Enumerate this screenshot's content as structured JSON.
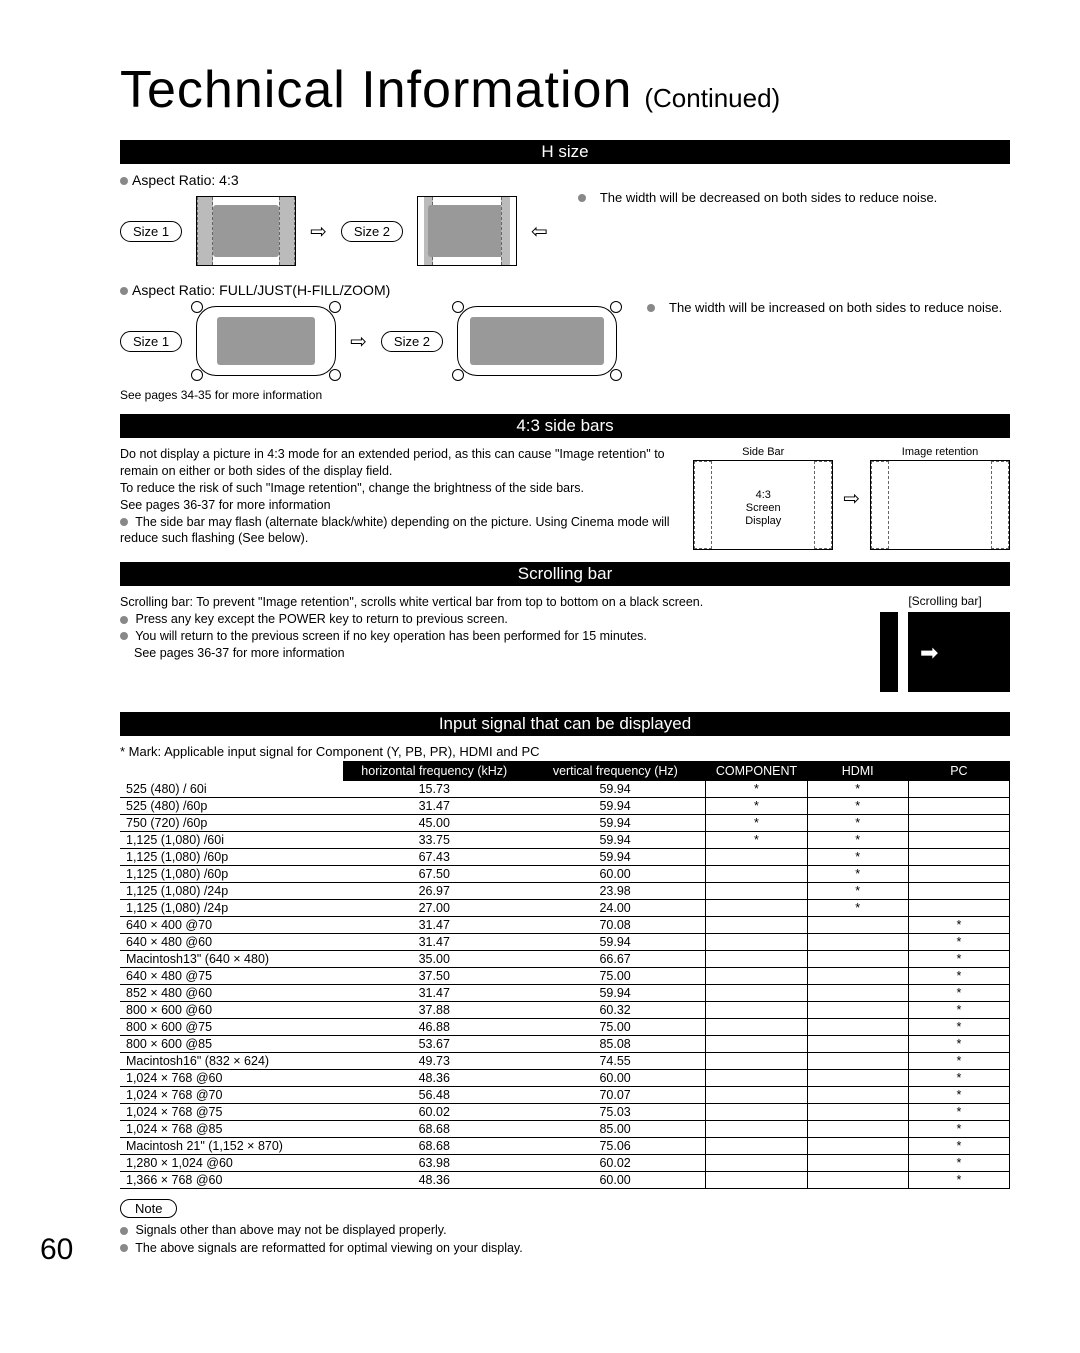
{
  "page_number": "60",
  "title": {
    "main": "Technical Information",
    "continued": "(Continued)"
  },
  "sections": {
    "hsize": {
      "header": "H size",
      "aspect_43": "Aspect Ratio: 4:3",
      "aspect_full": "Aspect Ratio: FULL/JUST(H-FILL/ZOOM)",
      "size1": "Size 1",
      "size2": "Size 2",
      "desc_43": "The width will be decreased on both sides to reduce noise.",
      "desc_full": "The width will be increased on both sides to reduce noise.",
      "see_pages": "See pages 34-35 for more information"
    },
    "sidebars": {
      "header": "4:3 side bars",
      "para1": "Do not display a picture in 4:3 mode for an extended period, as this can cause \"Image retention\" to remain on either or both sides of the display field.",
      "para2": "To reduce the risk of such \"Image retention\", change the brightness of the side bars.",
      "see_pages": "See pages 36-37 for more information",
      "bullet": "The side bar may flash (alternate black/white) depending on the picture. Using Cinema mode will reduce such flashing (See below).",
      "label_sidebar": "Side Bar",
      "label_retention": "Image retention",
      "center_text": "4:3\nScreen\nDisplay"
    },
    "scrolling": {
      "header": "Scrolling bar",
      "intro": "Scrolling bar: To prevent \"Image retention\", scrolls white vertical bar from top to bottom on a black screen.",
      "b1": "Press any key except the POWER key to return to previous screen.",
      "b2": "You will return to the previous screen if no key operation has been performed for 15 minutes.",
      "see_pages": "See pages 36-37 for more information",
      "box_label": "[Scrolling bar]"
    },
    "signals": {
      "header": "Input signal that can be displayed",
      "mark_note": "* Mark: Applicable input signal for Component (Y, PB, PR), HDMI and  PC",
      "columns": [
        "",
        "horizontal frequency (kHz)",
        "vertical frequency (Hz)",
        "COMPONENT",
        "HDMI",
        "PC"
      ],
      "rows": [
        {
          "n": "525 (480) / 60i",
          "h": "15.73",
          "v": "59.94",
          "c": "*",
          "hd": "*",
          "pc": ""
        },
        {
          "n": "525 (480) /60p",
          "h": "31.47",
          "v": "59.94",
          "c": "*",
          "hd": "*",
          "pc": ""
        },
        {
          "n": "750 (720) /60p",
          "h": "45.00",
          "v": "59.94",
          "c": "*",
          "hd": "*",
          "pc": ""
        },
        {
          "n": "1,125 (1,080) /60i",
          "h": "33.75",
          "v": "59.94",
          "c": "*",
          "hd": "*",
          "pc": ""
        },
        {
          "n": "1,125 (1,080) /60p",
          "h": "67.43",
          "v": "59.94",
          "c": "",
          "hd": "*",
          "pc": ""
        },
        {
          "n": "1,125 (1,080) /60p",
          "h": "67.50",
          "v": "60.00",
          "c": "",
          "hd": "*",
          "pc": ""
        },
        {
          "n": "1,125 (1,080) /24p",
          "h": "26.97",
          "v": "23.98",
          "c": "",
          "hd": "*",
          "pc": ""
        },
        {
          "n": "1,125 (1,080) /24p",
          "h": "27.00",
          "v": "24.00",
          "c": "",
          "hd": "*",
          "pc": ""
        },
        {
          "n": "640 × 400 @70",
          "h": "31.47",
          "v": "70.08",
          "c": "",
          "hd": "",
          "pc": "*"
        },
        {
          "n": "640 × 480 @60",
          "h": "31.47",
          "v": "59.94",
          "c": "",
          "hd": "",
          "pc": "*"
        },
        {
          "n": "Macintosh13\" (640 × 480)",
          "h": "35.00",
          "v": "66.67",
          "c": "",
          "hd": "",
          "pc": "*"
        },
        {
          "n": "640 × 480 @75",
          "h": "37.50",
          "v": "75.00",
          "c": "",
          "hd": "",
          "pc": "*"
        },
        {
          "n": "852 × 480 @60",
          "h": "31.47",
          "v": "59.94",
          "c": "",
          "hd": "",
          "pc": "*"
        },
        {
          "n": "800 × 600 @60",
          "h": "37.88",
          "v": "60.32",
          "c": "",
          "hd": "",
          "pc": "*"
        },
        {
          "n": "800 × 600 @75",
          "h": "46.88",
          "v": "75.00",
          "c": "",
          "hd": "",
          "pc": "*"
        },
        {
          "n": "800 × 600 @85",
          "h": "53.67",
          "v": "85.08",
          "c": "",
          "hd": "",
          "pc": "*"
        },
        {
          "n": "Macintosh16\" (832 × 624)",
          "h": "49.73",
          "v": "74.55",
          "c": "",
          "hd": "",
          "pc": "*"
        },
        {
          "n": "1,024 × 768 @60",
          "h": "48.36",
          "v": "60.00",
          "c": "",
          "hd": "",
          "pc": "*"
        },
        {
          "n": "1,024 × 768 @70",
          "h": "56.48",
          "v": "70.07",
          "c": "",
          "hd": "",
          "pc": "*"
        },
        {
          "n": "1,024 × 768 @75",
          "h": "60.02",
          "v": "75.03",
          "c": "",
          "hd": "",
          "pc": "*"
        },
        {
          "n": "1,024 × 768 @85",
          "h": "68.68",
          "v": "85.00",
          "c": "",
          "hd": "",
          "pc": "*"
        },
        {
          "n": "Macintosh 21\" (1,152 × 870)",
          "h": "68.68",
          "v": "75.06",
          "c": "",
          "hd": "",
          "pc": "*"
        },
        {
          "n": "1,280 × 1,024 @60",
          "h": "63.98",
          "v": "60.02",
          "c": "",
          "hd": "",
          "pc": "*"
        },
        {
          "n": "1,366 × 768 @60",
          "h": "48.36",
          "v": "60.00",
          "c": "",
          "hd": "",
          "pc": "*"
        }
      ]
    },
    "note": {
      "label": "Note",
      "n1": "Signals other than above may not be displayed properly.",
      "n2": "The above signals are reformatted for optimal viewing on your display."
    }
  },
  "colors": {
    "bg": "#ffffff",
    "text": "#000000",
    "header_bg": "#000000",
    "header_fg": "#ffffff",
    "bullet": "#888888",
    "gray_bar": "#bbbbbb"
  }
}
